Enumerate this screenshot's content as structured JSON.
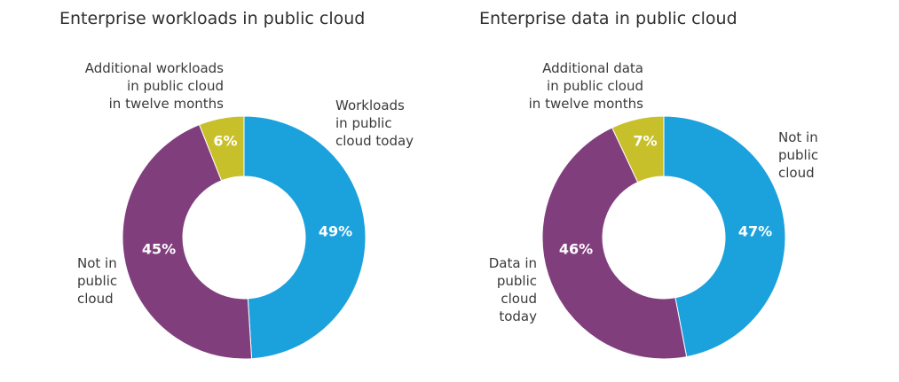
{
  "chart_data": [
    {
      "type": "pie",
      "title": "Enterprise workloads in public cloud",
      "categories": [
        "Workloads in public cloud today",
        "Not in public cloud",
        "Additional workloads in public cloud in twelve months"
      ],
      "values": [
        49,
        45,
        6
      ],
      "value_labels": [
        "49%",
        "45%",
        "6%"
      ],
      "callouts": [
        [
          "Workloads",
          "in public",
          "cloud today"
        ],
        [
          "Not in",
          "public",
          "cloud"
        ],
        [
          "Additional workloads",
          "in public cloud",
          "in twelve months"
        ]
      ],
      "colors": [
        "#1ba1dc",
        "#813e7d",
        "#c7c02a"
      ]
    },
    {
      "type": "pie",
      "title": "Enterprise data in public cloud",
      "categories": [
        "Not in public cloud",
        "Data in public cloud today",
        "Additional data in public cloud in twelve months"
      ],
      "values": [
        47,
        46,
        7
      ],
      "value_labels": [
        "47%",
        "46%",
        "7%"
      ],
      "callouts": [
        [
          "Not in",
          "public",
          "cloud"
        ],
        [
          "Data in",
          "public",
          "cloud",
          "today"
        ],
        [
          "Additional data",
          "in public cloud",
          "in twelve months"
        ]
      ],
      "colors": [
        "#1ba1dc",
        "#813e7d",
        "#c7c02a"
      ]
    }
  ]
}
